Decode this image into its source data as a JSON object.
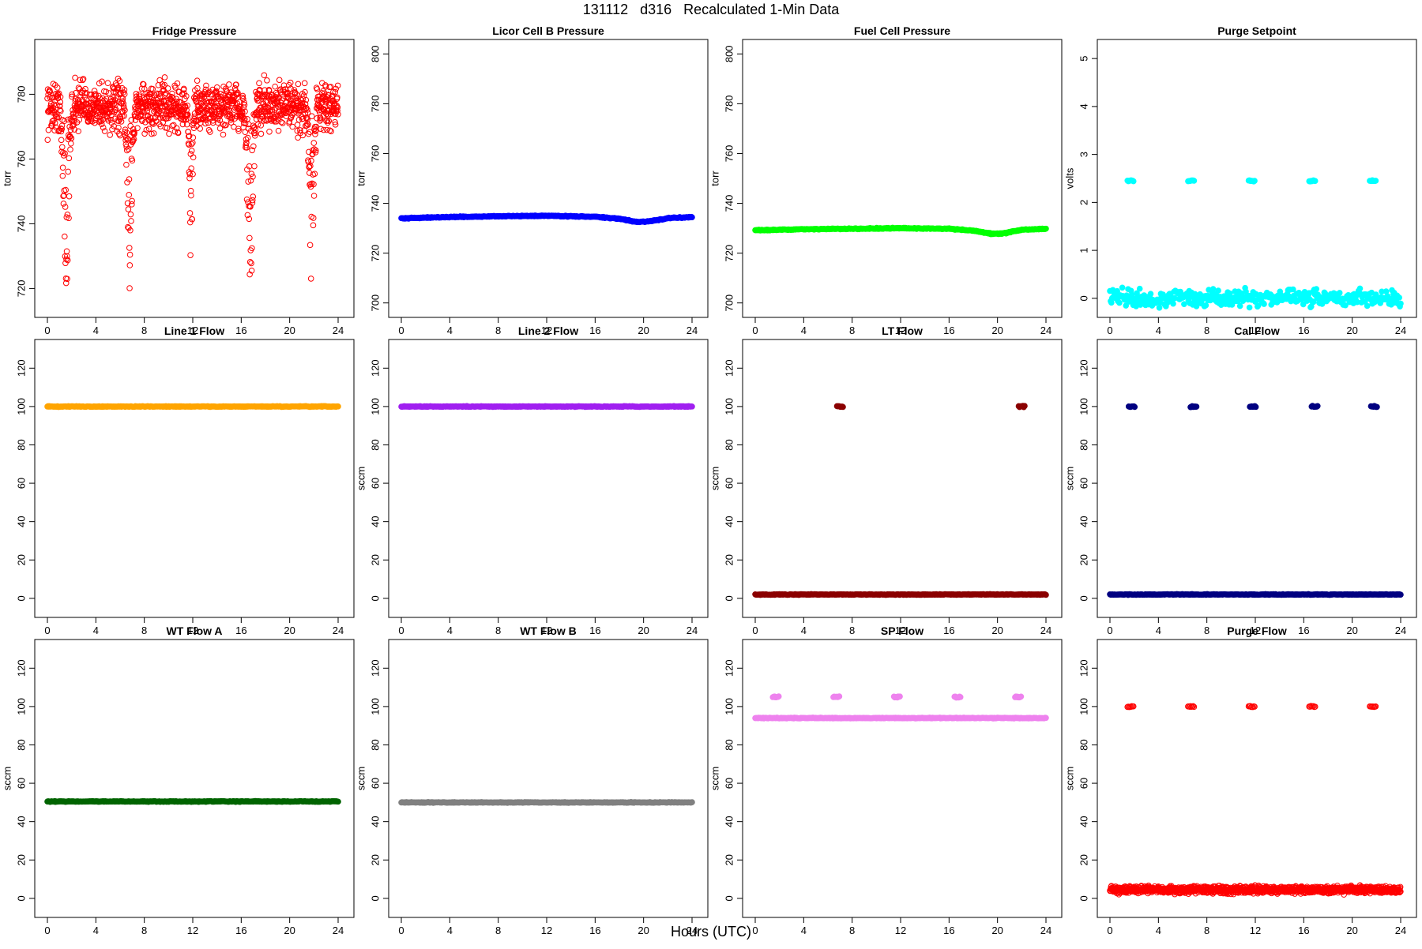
{
  "figure": {
    "title": "131112   d316   Recalculated 1-Min Data",
    "xlabel": "Hours (UTC)"
  },
  "chart_data": [
    {
      "type": "scatter",
      "title": "Fridge Pressure",
      "ylabel": "torr",
      "xlim": [
        0,
        24
      ],
      "ylim": [
        714,
        794
      ],
      "xticks": [
        0,
        4,
        8,
        12,
        16,
        20,
        24
      ],
      "yticks": [
        720,
        740,
        760,
        780
      ],
      "color": "#ff0000",
      "marker": "open-circle",
      "series": [
        {
          "mode": "noise",
          "center": 776,
          "spread": 6,
          "dips": [
            {
              "start": 1.1,
              "end": 2.0,
              "min": 714
            },
            {
              "start": 6.4,
              "end": 7.2,
              "min": 718
            },
            {
              "start": 11.6,
              "end": 12.1,
              "min": 720
            },
            {
              "start": 16.3,
              "end": 17.2,
              "min": 716
            },
            {
              "start": 21.4,
              "end": 22.2,
              "min": 715
            }
          ]
        }
      ]
    },
    {
      "type": "scatter",
      "title": "Licor Cell B Pressure",
      "ylabel": "torr",
      "xlim": [
        0,
        24
      ],
      "ylim": [
        698,
        802
      ],
      "xticks": [
        0,
        4,
        8,
        12,
        16,
        20,
        24
      ],
      "yticks": [
        700,
        720,
        740,
        760,
        780,
        800
      ],
      "color": "#0000ff",
      "marker": "filled-circle",
      "series": [
        {
          "mode": "line",
          "points": [
            [
              0,
              734.0
            ],
            [
              4,
              734.5
            ],
            [
              8,
              734.8
            ],
            [
              12,
              735.0
            ],
            [
              16,
              734.6
            ],
            [
              18,
              733.8
            ],
            [
              19.5,
              732.5
            ],
            [
              20.5,
              732.8
            ],
            [
              22,
              734.0
            ],
            [
              24,
              734.5
            ]
          ]
        }
      ]
    },
    {
      "type": "scatter",
      "title": "Fuel Cell Pressure",
      "ylabel": "torr",
      "xlim": [
        0,
        24
      ],
      "ylim": [
        698,
        802
      ],
      "xticks": [
        0,
        4,
        8,
        12,
        16,
        20,
        24
      ],
      "yticks": [
        700,
        720,
        740,
        760,
        780,
        800
      ],
      "color": "#00ff00",
      "marker": "filled-circle",
      "series": [
        {
          "mode": "line",
          "points": [
            [
              0,
              729.2
            ],
            [
              4,
              729.6
            ],
            [
              8,
              729.8
            ],
            [
              12,
              730.0
            ],
            [
              16,
              729.8
            ],
            [
              18,
              729.0
            ],
            [
              19.5,
              727.8
            ],
            [
              20.5,
              727.9
            ],
            [
              22,
              729.4
            ],
            [
              24,
              729.8
            ]
          ]
        }
      ]
    },
    {
      "type": "scatter",
      "title": "Purge Setpoint",
      "ylabel": "volts",
      "xlim": [
        0,
        24
      ],
      "ylim": [
        -0.2,
        5.2
      ],
      "xticks": [
        0,
        4,
        8,
        12,
        16,
        20,
        24
      ],
      "yticks": [
        0,
        1,
        2,
        3,
        4,
        5
      ],
      "color": "#00ffff",
      "marker": "filled-circle",
      "series": [
        {
          "mode": "line",
          "points": [
            [
              0,
              0
            ],
            [
              24,
              0
            ]
          ]
        },
        {
          "mode": "clusters",
          "y": 2.45,
          "clusters": [
            1.7,
            6.7,
            11.7,
            16.7,
            21.7
          ]
        }
      ]
    },
    {
      "type": "scatter",
      "title": "Line 1 Flow",
      "ylabel": "",
      "xlim": [
        0,
        24
      ],
      "ylim": [
        -5,
        130
      ],
      "xticks": [
        0,
        4,
        8,
        12,
        16,
        20,
        24
      ],
      "yticks": [
        0,
        20,
        40,
        60,
        80,
        100,
        120
      ],
      "color": "#ffa500",
      "marker": "filled-circle",
      "series": [
        {
          "mode": "line",
          "points": [
            [
              0,
              100
            ],
            [
              24,
              100
            ]
          ]
        }
      ]
    },
    {
      "type": "scatter",
      "title": "Line 2 Flow",
      "ylabel": "sccm",
      "xlim": [
        0,
        24
      ],
      "ylim": [
        -5,
        130
      ],
      "xticks": [
        0,
        4,
        8,
        12,
        16,
        20,
        24
      ],
      "yticks": [
        0,
        20,
        40,
        60,
        80,
        100,
        120
      ],
      "color": "#a020f0",
      "marker": "filled-circle",
      "series": [
        {
          "mode": "line",
          "points": [
            [
              0,
              100
            ],
            [
              24,
              100
            ]
          ]
        }
      ]
    },
    {
      "type": "scatter",
      "title": "LT Flow",
      "ylabel": "sccm",
      "xlim": [
        0,
        24
      ],
      "ylim": [
        -5,
        130
      ],
      "xticks": [
        0,
        4,
        8,
        12,
        16,
        20,
        24
      ],
      "yticks": [
        0,
        20,
        40,
        60,
        80,
        100,
        120
      ],
      "color": "#8b0000",
      "marker": "filled-circle",
      "series": [
        {
          "mode": "line",
          "points": [
            [
              0,
              2
            ],
            [
              24,
              2
            ]
          ]
        },
        {
          "mode": "clusters",
          "y": 100,
          "clusters": [
            7.0,
            22.0
          ]
        }
      ]
    },
    {
      "type": "scatter",
      "title": "Cal Flow",
      "ylabel": "sccm",
      "xlim": [
        0,
        24
      ],
      "ylim": [
        -5,
        130
      ],
      "xticks": [
        0,
        4,
        8,
        12,
        16,
        20,
        24
      ],
      "yticks": [
        0,
        20,
        40,
        60,
        80,
        100,
        120
      ],
      "color": "#000080",
      "marker": "filled-circle",
      "series": [
        {
          "mode": "line",
          "points": [
            [
              0,
              2
            ],
            [
              24,
              2
            ]
          ]
        },
        {
          "mode": "clusters",
          "y": 100,
          "clusters": [
            1.8,
            6.9,
            11.8,
            16.9,
            21.8
          ]
        }
      ]
    },
    {
      "type": "scatter",
      "title": "WT Flow A",
      "ylabel": "sccm",
      "xlim": [
        0,
        24
      ],
      "ylim": [
        -5,
        130
      ],
      "xticks": [
        0,
        4,
        8,
        12,
        16,
        20,
        24
      ],
      "yticks": [
        0,
        20,
        40,
        60,
        80,
        100,
        120
      ],
      "color": "#006400",
      "marker": "filled-circle",
      "series": [
        {
          "mode": "line",
          "points": [
            [
              0,
              50.5
            ],
            [
              24,
              50.5
            ]
          ]
        }
      ]
    },
    {
      "type": "scatter",
      "title": "WT Flow B",
      "ylabel": "sccm",
      "xlim": [
        0,
        24
      ],
      "ylim": [
        -5,
        130
      ],
      "xticks": [
        0,
        4,
        8,
        12,
        16,
        20,
        24
      ],
      "yticks": [
        0,
        20,
        40,
        60,
        80,
        100,
        120
      ],
      "color": "#808080",
      "marker": "filled-circle",
      "series": [
        {
          "mode": "line",
          "points": [
            [
              0,
              50
            ],
            [
              24,
              50
            ]
          ]
        }
      ]
    },
    {
      "type": "scatter",
      "title": "SP Flow",
      "ylabel": "sccm",
      "xlim": [
        0,
        24
      ],
      "ylim": [
        -5,
        130
      ],
      "xticks": [
        0,
        4,
        8,
        12,
        16,
        20,
        24
      ],
      "yticks": [
        0,
        20,
        40,
        60,
        80,
        100,
        120
      ],
      "color": "#ee82ee",
      "marker": "filled-circle",
      "series": [
        {
          "mode": "line",
          "points": [
            [
              0,
              94
            ],
            [
              24,
              94
            ]
          ]
        },
        {
          "mode": "clusters",
          "y": 105,
          "clusters": [
            1.7,
            6.7,
            11.7,
            16.7,
            21.7
          ]
        }
      ]
    },
    {
      "type": "scatter",
      "title": "Purge Flow",
      "ylabel": "sccm",
      "xlim": [
        0,
        24
      ],
      "ylim": [
        -5,
        130
      ],
      "xticks": [
        0,
        4,
        8,
        12,
        16,
        20,
        24
      ],
      "yticks": [
        0,
        20,
        40,
        60,
        80,
        100,
        120
      ],
      "color": "#ff0000",
      "marker": "open-circle",
      "series": [
        {
          "mode": "noise",
          "center": 4.5,
          "spread": 1.5,
          "dips": []
        },
        {
          "mode": "clusters",
          "y": 100,
          "clusters": [
            1.7,
            6.7,
            11.7,
            16.7,
            21.7
          ]
        }
      ]
    }
  ]
}
